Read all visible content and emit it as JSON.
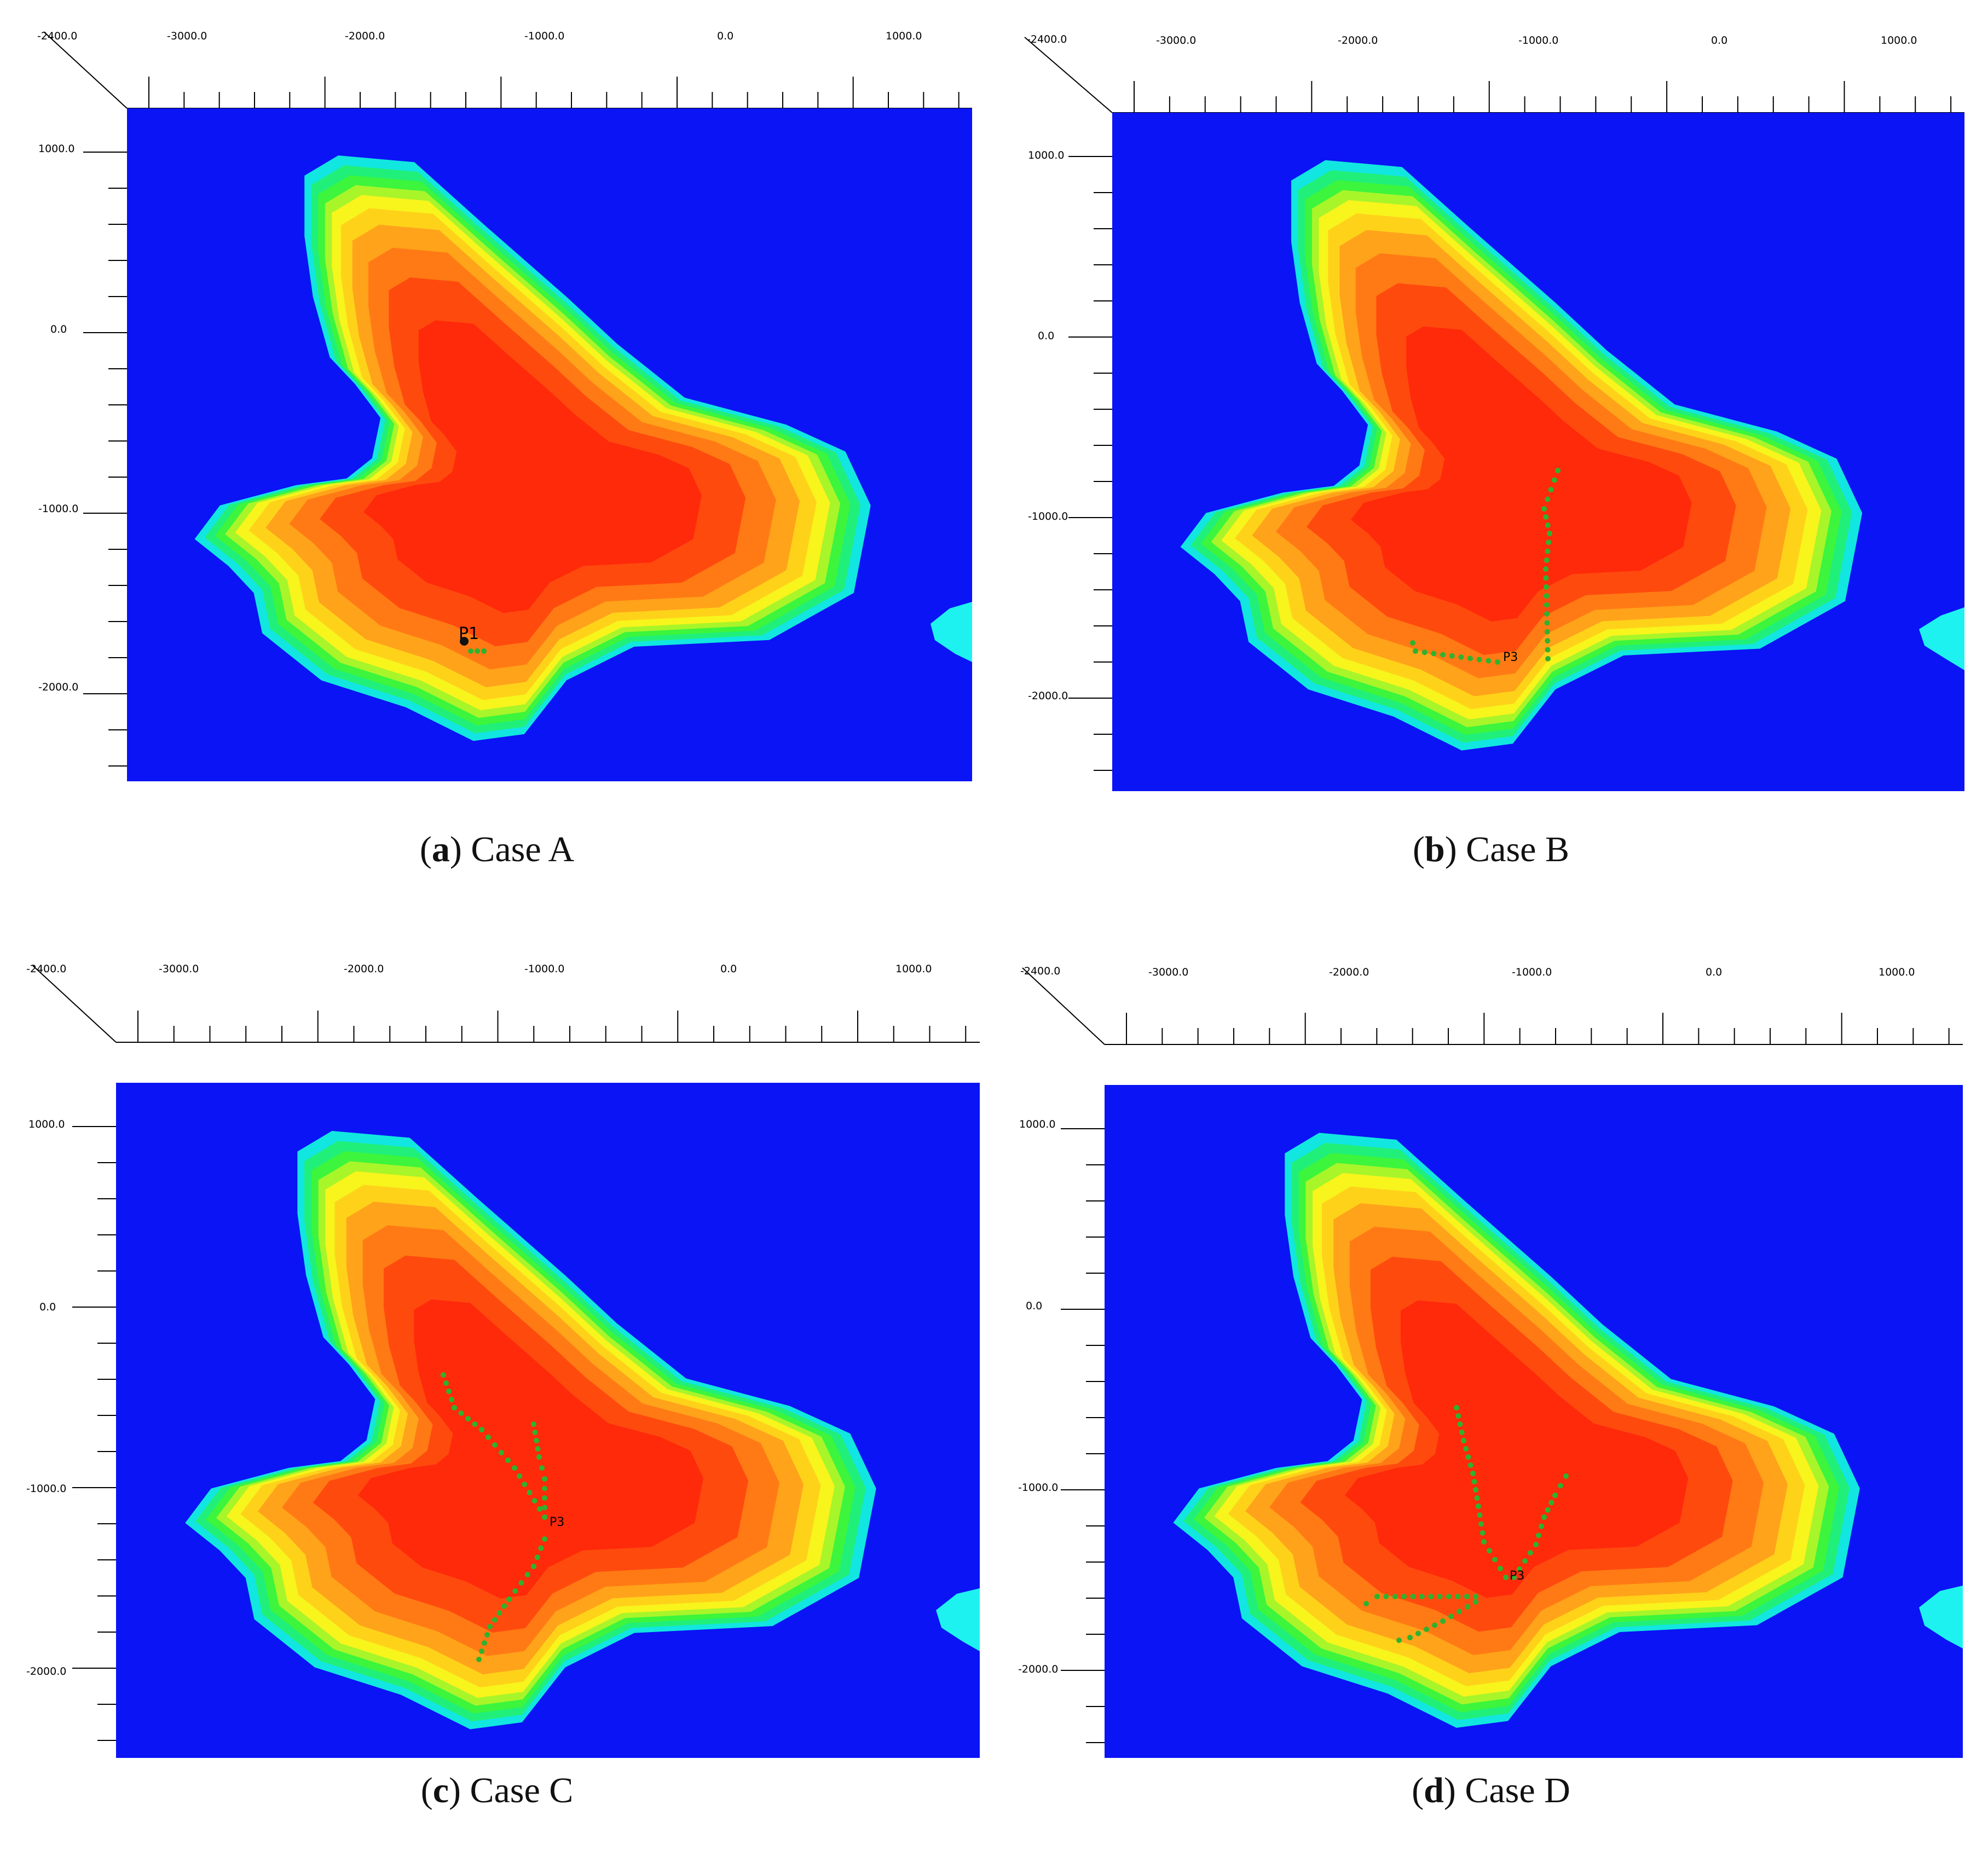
{
  "colors": {
    "background_blue": "#0a14f5",
    "inner_red": "#ff1a0a",
    "cyan_blob": "#1ef2f0",
    "well_green": "#2fb22f"
  },
  "axes": {
    "x_labels": [
      "-3000.0",
      "-2000.0",
      "-1000.0",
      "0.0",
      "1000.0"
    ],
    "y_labels": [
      "1000.0",
      "0.0",
      "-1000.0",
      "-2000.0"
    ],
    "corner_label": "-2400.0"
  },
  "panels": [
    {
      "letter": "a",
      "caption_text": " Case A",
      "well_label": "P1",
      "wells": []
    },
    {
      "letter": "b",
      "caption_text": " Case B",
      "well_label": "P3",
      "wells": []
    },
    {
      "letter": "c",
      "caption_text": " Case C",
      "well_label": "P3",
      "wells": []
    },
    {
      "letter": "d",
      "caption_text": " Case D",
      "well_label": "P3",
      "wells": []
    }
  ]
}
